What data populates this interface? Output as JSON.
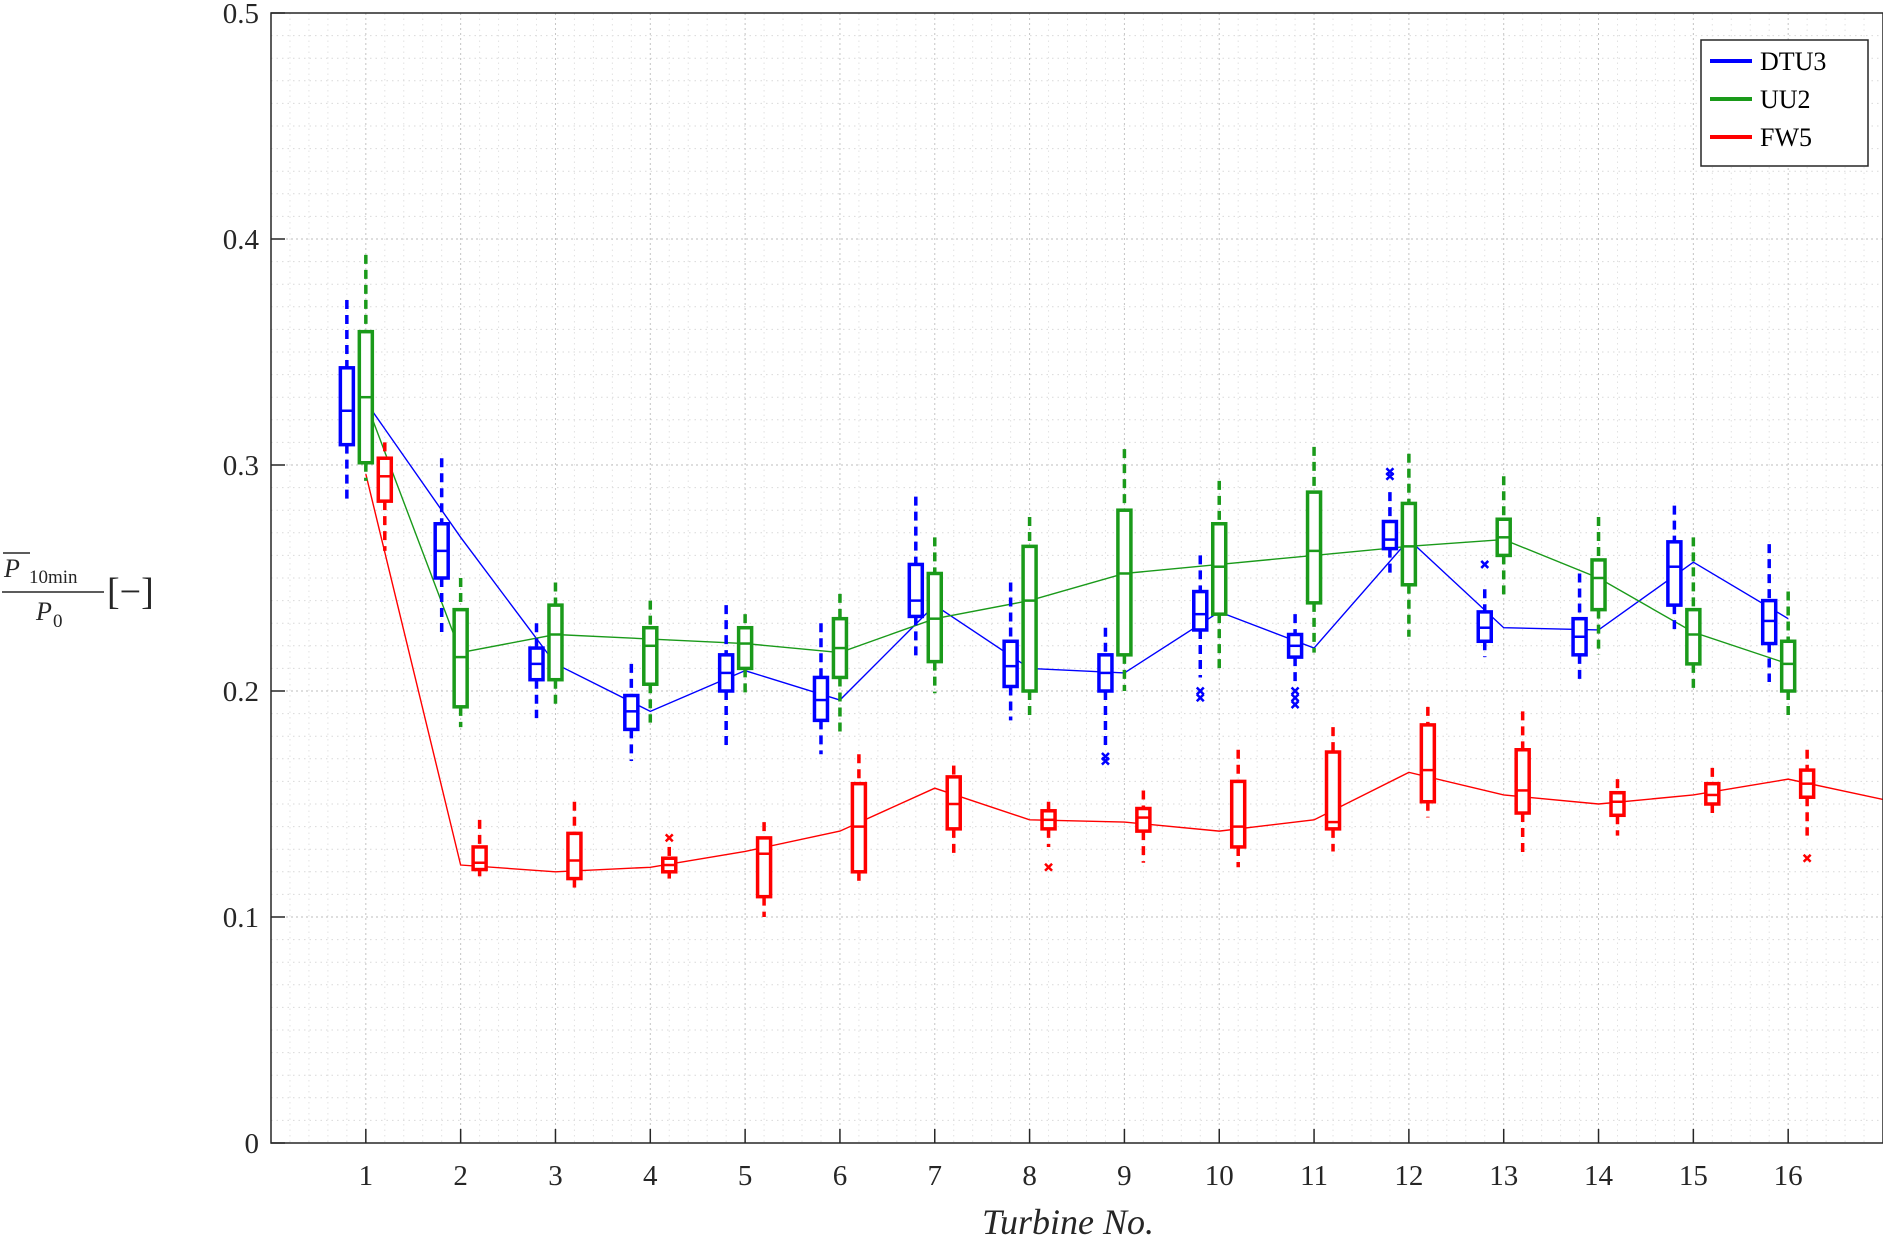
{
  "chart_data": {
    "type": "box",
    "xlabel": "Turbine No.",
    "ylabel": {
      "symbol": "P",
      "subscript": "10min",
      "denominator": "P",
      "denominator_subscript": "0",
      "unit": "[−]"
    },
    "xlim": [
      0,
      17
    ],
    "ylim": [
      0,
      0.5
    ],
    "yticks": [
      "0",
      "0.1",
      "0.2",
      "0.3",
      "0.4",
      "0.5"
    ],
    "xticks": [
      "1",
      "2",
      "3",
      "4",
      "5",
      "6",
      "7",
      "8",
      "9",
      "10",
      "11",
      "12",
      "13",
      "14",
      "15",
      "16"
    ],
    "grid": true,
    "minor_grid": true,
    "legend_position": "top-right",
    "series": [
      {
        "name": "DTU3",
        "color": "#0000ff",
        "offset": -0.2,
        "mean_line": [
          0.328,
          0.268,
          0.212,
          0.191,
          0.209,
          0.196,
          0.238,
          0.21,
          0.208,
          0.235,
          0.219,
          0.267,
          0.228,
          0.227,
          0.257,
          0.232
        ],
        "boxes": [
          {
            "x": 1,
            "wlo": 0.284,
            "q1": 0.309,
            "med": 0.324,
            "q3": 0.343,
            "whi": 0.373
          },
          {
            "x": 2,
            "wlo": 0.225,
            "q1": 0.25,
            "med": 0.262,
            "q3": 0.274,
            "whi": 0.303
          },
          {
            "x": 3,
            "wlo": 0.188,
            "q1": 0.205,
            "med": 0.212,
            "q3": 0.219,
            "whi": 0.23
          },
          {
            "x": 4,
            "wlo": 0.169,
            "q1": 0.183,
            "med": 0.191,
            "q3": 0.198,
            "whi": 0.212
          },
          {
            "x": 5,
            "wlo": 0.175,
            "q1": 0.2,
            "med": 0.208,
            "q3": 0.216,
            "whi": 0.238
          },
          {
            "x": 6,
            "wlo": 0.172,
            "q1": 0.187,
            "med": 0.196,
            "q3": 0.206,
            "whi": 0.23
          },
          {
            "x": 7,
            "wlo": 0.215,
            "q1": 0.233,
            "med": 0.24,
            "q3": 0.256,
            "whi": 0.286
          },
          {
            "x": 8,
            "wlo": 0.187,
            "q1": 0.202,
            "med": 0.211,
            "q3": 0.222,
            "whi": 0.248
          },
          {
            "x": 9,
            "wlo": 0.176,
            "q1": 0.2,
            "med": 0.208,
            "q3": 0.216,
            "whi": 0.228
          },
          {
            "x": 10,
            "wlo": 0.206,
            "q1": 0.227,
            "med": 0.234,
            "q3": 0.244,
            "whi": 0.26
          },
          {
            "x": 11,
            "wlo": 0.204,
            "q1": 0.215,
            "med": 0.22,
            "q3": 0.225,
            "whi": 0.234
          },
          {
            "x": 12,
            "wlo": 0.25,
            "q1": 0.263,
            "med": 0.267,
            "q3": 0.275,
            "whi": 0.288
          },
          {
            "x": 13,
            "wlo": 0.215,
            "q1": 0.222,
            "med": 0.228,
            "q3": 0.235,
            "whi": 0.245
          },
          {
            "x": 14,
            "wlo": 0.204,
            "q1": 0.216,
            "med": 0.224,
            "q3": 0.232,
            "whi": 0.252
          },
          {
            "x": 15,
            "wlo": 0.227,
            "q1": 0.238,
            "med": 0.255,
            "q3": 0.266,
            "whi": 0.282
          },
          {
            "x": 16,
            "wlo": 0.204,
            "q1": 0.221,
            "med": 0.231,
            "q3": 0.24,
            "whi": 0.265
          }
        ],
        "outliers": [
          {
            "x": 9,
            "y": 0.171
          },
          {
            "x": 9,
            "y": 0.169
          },
          {
            "x": 10,
            "y": 0.2
          },
          {
            "x": 10,
            "y": 0.197
          },
          {
            "x": 11,
            "y": 0.2
          },
          {
            "x": 11,
            "y": 0.197
          },
          {
            "x": 11,
            "y": 0.194
          },
          {
            "x": 12,
            "y": 0.297
          },
          {
            "x": 12,
            "y": 0.295
          },
          {
            "x": 13,
            "y": 0.256
          }
        ]
      },
      {
        "name": "UU2",
        "color": "#1a9a1a",
        "offset": 0,
        "mean_line": [
          0.328,
          0.217,
          0.225,
          0.223,
          0.221,
          0.217,
          0.232,
          0.24,
          0.252,
          0.256,
          0.26,
          0.264,
          0.267,
          0.25,
          0.226,
          0.212
        ],
        "boxes": [
          {
            "x": 1,
            "wlo": 0.293,
            "q1": 0.301,
            "med": 0.33,
            "q3": 0.359,
            "whi": 0.393
          },
          {
            "x": 2,
            "wlo": 0.184,
            "q1": 0.193,
            "med": 0.215,
            "q3": 0.236,
            "whi": 0.25
          },
          {
            "x": 3,
            "wlo": 0.192,
            "q1": 0.205,
            "med": 0.225,
            "q3": 0.238,
            "whi": 0.248
          },
          {
            "x": 4,
            "wlo": 0.186,
            "q1": 0.203,
            "med": 0.22,
            "q3": 0.228,
            "whi": 0.24
          },
          {
            "x": 5,
            "wlo": 0.198,
            "q1": 0.21,
            "med": 0.221,
            "q3": 0.228,
            "whi": 0.234
          },
          {
            "x": 6,
            "wlo": 0.18,
            "q1": 0.206,
            "med": 0.219,
            "q3": 0.232,
            "whi": 0.243
          },
          {
            "x": 7,
            "wlo": 0.199,
            "q1": 0.213,
            "med": 0.232,
            "q3": 0.252,
            "whi": 0.268
          },
          {
            "x": 8,
            "wlo": 0.189,
            "q1": 0.2,
            "med": 0.24,
            "q3": 0.264,
            "whi": 0.277
          },
          {
            "x": 9,
            "wlo": 0.2,
            "q1": 0.216,
            "med": 0.252,
            "q3": 0.28,
            "whi": 0.307
          },
          {
            "x": 10,
            "wlo": 0.208,
            "q1": 0.234,
            "med": 0.255,
            "q3": 0.274,
            "whi": 0.293
          },
          {
            "x": 11,
            "wlo": 0.217,
            "q1": 0.239,
            "med": 0.262,
            "q3": 0.288,
            "whi": 0.308
          },
          {
            "x": 12,
            "wlo": 0.224,
            "q1": 0.247,
            "med": 0.264,
            "q3": 0.283,
            "whi": 0.305
          },
          {
            "x": 13,
            "wlo": 0.242,
            "q1": 0.26,
            "med": 0.268,
            "q3": 0.276,
            "whi": 0.295
          },
          {
            "x": 14,
            "wlo": 0.216,
            "q1": 0.236,
            "med": 0.25,
            "q3": 0.258,
            "whi": 0.277
          },
          {
            "x": 15,
            "wlo": 0.2,
            "q1": 0.212,
            "med": 0.225,
            "q3": 0.236,
            "whi": 0.268
          },
          {
            "x": 16,
            "wlo": 0.189,
            "q1": 0.2,
            "med": 0.212,
            "q3": 0.222,
            "whi": 0.244
          }
        ],
        "outliers": []
      },
      {
        "name": "FW5",
        "color": "#ff0000",
        "offset": 0.2,
        "mean_line": [
          0.296,
          0.123,
          0.12,
          0.122,
          0.129,
          0.138,
          0.157,
          0.143,
          0.142,
          0.138,
          0.143,
          0.164,
          0.154,
          0.15,
          0.154,
          0.161
        ],
        "mean_line_end": {
          "x": 17,
          "y": 0.152
        },
        "boxes": [
          {
            "x": 1,
            "wlo": 0.262,
            "q1": 0.284,
            "med": 0.295,
            "q3": 0.303,
            "whi": 0.31
          },
          {
            "x": 2,
            "wlo": 0.118,
            "q1": 0.121,
            "med": 0.124,
            "q3": 0.131,
            "whi": 0.143
          },
          {
            "x": 3,
            "wlo": 0.113,
            "q1": 0.117,
            "med": 0.125,
            "q3": 0.137,
            "whi": 0.151
          },
          {
            "x": 4,
            "wlo": 0.117,
            "q1": 0.12,
            "med": 0.123,
            "q3": 0.126,
            "whi": 0.131
          },
          {
            "x": 5,
            "wlo": 0.1,
            "q1": 0.109,
            "med": 0.128,
            "q3": 0.135,
            "whi": 0.142
          },
          {
            "x": 6,
            "wlo": 0.115,
            "q1": 0.12,
            "med": 0.14,
            "q3": 0.159,
            "whi": 0.172
          },
          {
            "x": 7,
            "wlo": 0.126,
            "q1": 0.139,
            "med": 0.15,
            "q3": 0.162,
            "whi": 0.167
          },
          {
            "x": 8,
            "wlo": 0.131,
            "q1": 0.139,
            "med": 0.143,
            "q3": 0.147,
            "whi": 0.151
          },
          {
            "x": 9,
            "wlo": 0.124,
            "q1": 0.138,
            "med": 0.144,
            "q3": 0.148,
            "whi": 0.156
          },
          {
            "x": 10,
            "wlo": 0.122,
            "q1": 0.131,
            "med": 0.14,
            "q3": 0.16,
            "whi": 0.174
          },
          {
            "x": 11,
            "wlo": 0.129,
            "q1": 0.139,
            "med": 0.142,
            "q3": 0.173,
            "whi": 0.184
          },
          {
            "x": 12,
            "wlo": 0.144,
            "q1": 0.151,
            "med": 0.165,
            "q3": 0.185,
            "whi": 0.193
          },
          {
            "x": 13,
            "wlo": 0.128,
            "q1": 0.146,
            "med": 0.156,
            "q3": 0.174,
            "whi": 0.191
          },
          {
            "x": 14,
            "wlo": 0.136,
            "q1": 0.145,
            "med": 0.151,
            "q3": 0.155,
            "whi": 0.161
          },
          {
            "x": 15,
            "wlo": 0.145,
            "q1": 0.15,
            "med": 0.154,
            "q3": 0.159,
            "whi": 0.166
          },
          {
            "x": 16,
            "wlo": 0.136,
            "q1": 0.153,
            "med": 0.159,
            "q3": 0.165,
            "whi": 0.174
          }
        ],
        "outliers": [
          {
            "x": 4,
            "y": 0.135
          },
          {
            "x": 8,
            "y": 0.122
          },
          {
            "x": 16,
            "y": 0.126
          }
        ]
      }
    ]
  }
}
